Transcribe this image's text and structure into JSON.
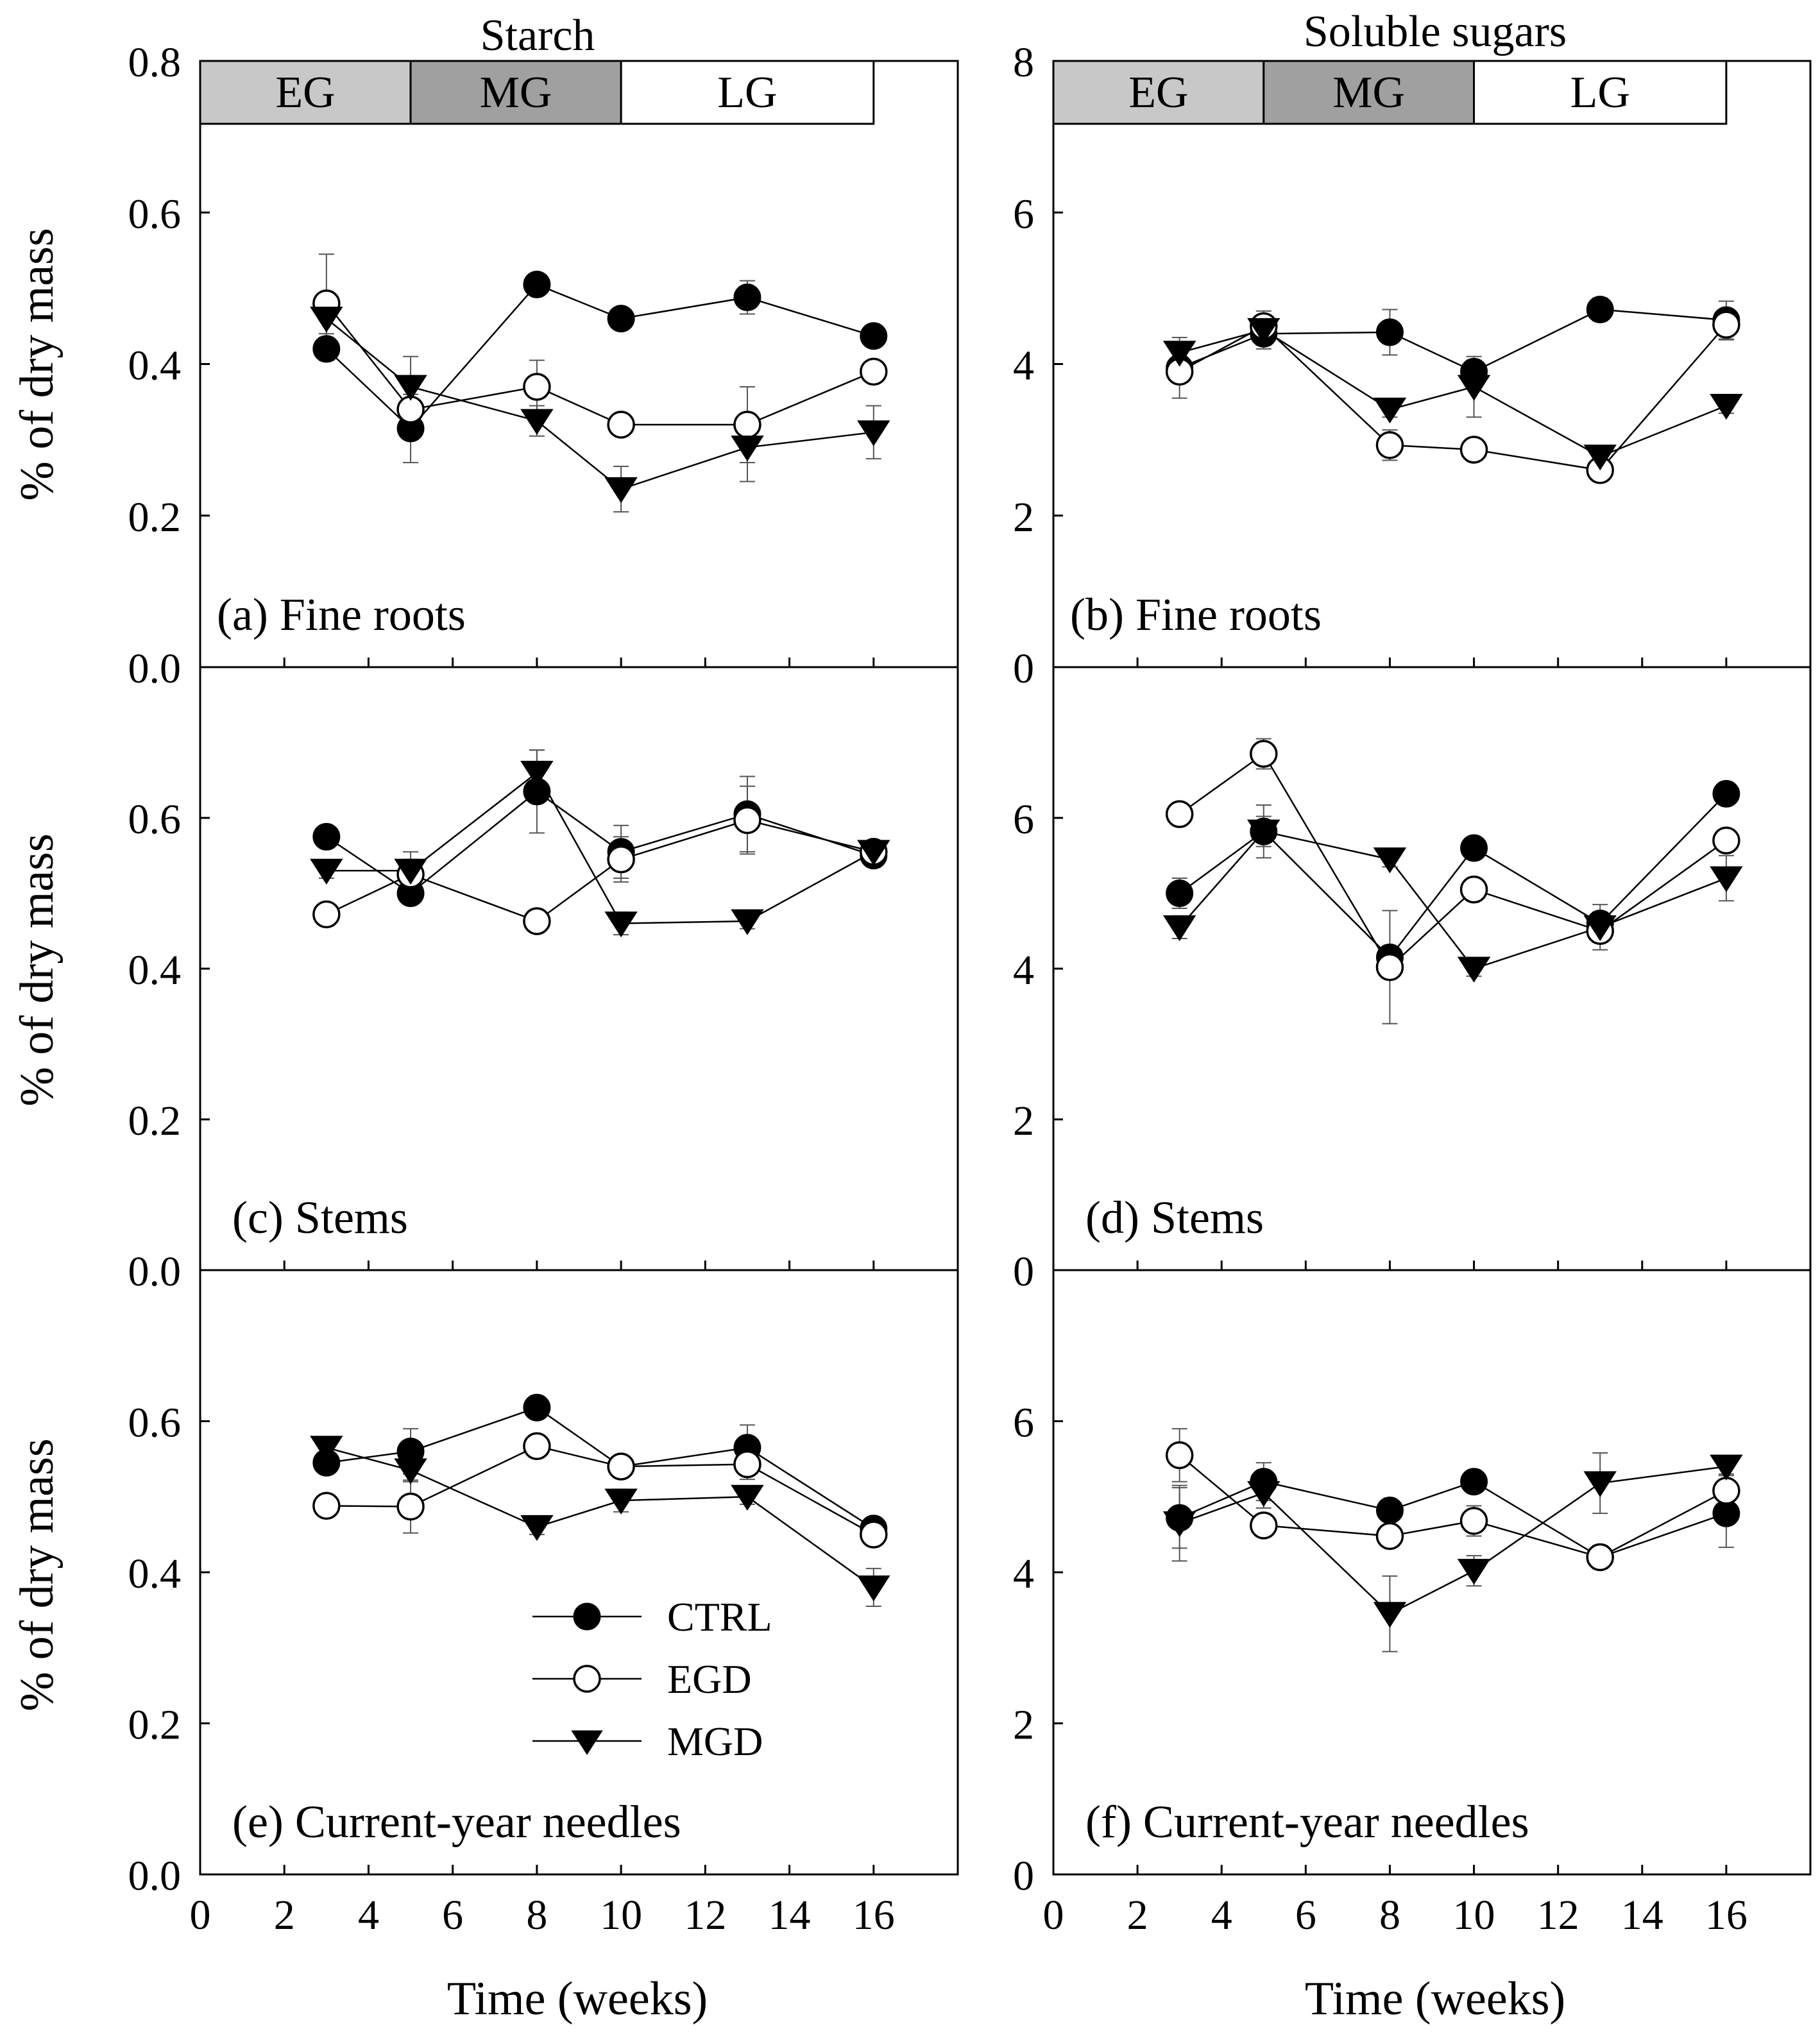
{
  "figure": {
    "x_axis_label": "Time (weeks)",
    "y_axis_label": "% of dry mass",
    "phase_labels": [
      "EG",
      "MG",
      "LG"
    ],
    "phase_colors": [
      "#c8c8c8",
      "#a0a0a0",
      "#ffffff"
    ],
    "legend": [
      "CTRL",
      "EGD",
      "MGD"
    ]
  },
  "columns": [
    {
      "title": "Starch"
    },
    {
      "title": "Soluble sugars"
    }
  ],
  "chart_data": [
    {
      "type": "line",
      "panel": "(a) Fine roots",
      "column": "Starch",
      "xlabel": "",
      "ylabel": "% of dry mass",
      "xlim": [
        0,
        18
      ],
      "ylim": [
        0,
        0.8
      ],
      "yticks": [
        "0.0",
        "0.2",
        "0.4",
        "0.6",
        "0.8"
      ],
      "xticks": [],
      "phases": [
        {
          "label": "EG",
          "x_start": 0,
          "x_end": 5
        },
        {
          "label": "MG",
          "x_start": 5,
          "x_end": 10
        },
        {
          "label": "LG",
          "x_start": 10,
          "x_end": 16
        }
      ],
      "x": [
        3,
        5,
        8,
        10,
        13,
        16
      ],
      "series": [
        {
          "name": "CTRL",
          "values": [
            0.42,
            0.315,
            0.505,
            0.46,
            0.488,
            0.437
          ],
          "errors": [
            0.015,
            0.045,
            0.01,
            0.01,
            0.022,
            0.01
          ]
        },
        {
          "name": "EGD",
          "values": [
            0.48,
            0.34,
            0.37,
            0.32,
            0.32,
            0.39
          ],
          "errors": [
            0.065,
            0.03,
            0.035,
            0.01,
            0.05,
            0.01
          ]
        },
        {
          "name": "MGD",
          "values": [
            0.46,
            0.37,
            0.325,
            0.235,
            0.29,
            0.31
          ],
          "errors": [
            0.02,
            0.04,
            0.02,
            0.03,
            0.045,
            0.035
          ]
        }
      ]
    },
    {
      "type": "line",
      "panel": "(b) Fine roots",
      "column": "Soluble sugars",
      "xlabel": "",
      "ylabel": "",
      "xlim": [
        0,
        18
      ],
      "ylim": [
        0,
        8
      ],
      "yticks": [
        "0",
        "2",
        "4",
        "6",
        "8"
      ],
      "xticks": [],
      "phases": [
        {
          "label": "EG",
          "x_start": 0,
          "x_end": 5
        },
        {
          "label": "MG",
          "x_start": 5,
          "x_end": 10
        },
        {
          "label": "LG",
          "x_start": 10,
          "x_end": 16
        }
      ],
      "x": [
        3,
        5,
        8,
        10,
        13,
        16
      ],
      "series": [
        {
          "name": "CTRL",
          "values": [
            3.95,
            4.4,
            4.42,
            3.9,
            4.72,
            4.58
          ],
          "errors": [
            0.15,
            0.2,
            0.3,
            0.15,
            0.15,
            0.25
          ]
        },
        {
          "name": "EGD",
          "values": [
            3.9,
            4.5,
            2.93,
            2.87,
            2.6,
            4.52
          ],
          "errors": [
            0.35,
            0.2,
            0.2,
            0.1,
            0.15,
            0.2
          ]
        },
        {
          "name": "MGD",
          "values": [
            4.15,
            4.45,
            3.4,
            3.7,
            2.78,
            3.45
          ],
          "errors": [
            0.2,
            0.2,
            0.1,
            0.4,
            0.1,
            0.1
          ]
        }
      ]
    },
    {
      "type": "line",
      "panel": "(c) Stems",
      "column": "Starch",
      "xlabel": "",
      "ylabel": "% of dry mass",
      "xlim": [
        0,
        18
      ],
      "ylim": [
        0,
        0.8
      ],
      "yticks": [
        "0.0",
        "0.2",
        "0.4",
        "0.6"
      ],
      "xticks": [],
      "phases": [],
      "x": [
        3,
        5,
        8,
        10,
        13,
        16
      ],
      "series": [
        {
          "name": "CTRL",
          "values": [
            0.575,
            0.5,
            0.635,
            0.555,
            0.605,
            0.55
          ],
          "errors": [
            0.01,
            0.01,
            0.055,
            0.035,
            0.05,
            0.01
          ]
        },
        {
          "name": "EGD",
          "values": [
            0.472,
            0.525,
            0.463,
            0.545,
            0.597,
            0.555
          ],
          "errors": [
            0.01,
            0.02,
            0.01,
            0.03,
            0.045,
            0.01
          ]
        },
        {
          "name": "MGD",
          "values": [
            0.53,
            0.53,
            0.66,
            0.46,
            0.463,
            0.555
          ],
          "errors": [
            0.01,
            0.025,
            0.03,
            0.015,
            0.01,
            0.01
          ]
        }
      ]
    },
    {
      "type": "line",
      "panel": "(d) Stems",
      "column": "Soluble sugars",
      "xlabel": "",
      "ylabel": "",
      "xlim": [
        0,
        18
      ],
      "ylim": [
        0,
        8
      ],
      "yticks": [
        "0",
        "2",
        "4",
        "6"
      ],
      "xticks": [],
      "phases": [],
      "x": [
        3,
        5,
        8,
        10,
        13,
        16
      ],
      "series": [
        {
          "name": "CTRL",
          "values": [
            5.0,
            5.82,
            4.15,
            5.6,
            4.6,
            6.32
          ],
          "errors": [
            0.2,
            0.35,
            0.1,
            0.1,
            0.25,
            0.1
          ]
        },
        {
          "name": "EGD",
          "values": [
            6.05,
            6.85,
            4.02,
            5.05,
            4.5,
            5.7
          ],
          "errors": [
            0.1,
            0.2,
            0.75,
            0.1,
            0.25,
            0.15
          ]
        },
        {
          "name": "MGD",
          "values": [
            4.55,
            5.82,
            5.45,
            4.0,
            4.55,
            5.2
          ],
          "errors": [
            0.15,
            0.2,
            0.1,
            0.1,
            0.2,
            0.3
          ]
        }
      ]
    },
    {
      "type": "line",
      "panel": "(e) Current-year needles",
      "column": "Starch",
      "xlabel": "Time (weeks)",
      "ylabel": "% of dry mass",
      "xlim": [
        0,
        18
      ],
      "ylim": [
        0,
        0.8
      ],
      "yticks": [
        "0.0",
        "0.2",
        "0.4",
        "0.6"
      ],
      "xticks": [
        "0",
        "2",
        "4",
        "6",
        "8",
        "10",
        "12",
        "14",
        "16"
      ],
      "phases": [],
      "x": [
        3,
        5,
        8,
        10,
        13,
        16
      ],
      "series": [
        {
          "name": "CTRL",
          "values": [
            0.545,
            0.56,
            0.618,
            0.54,
            0.565,
            0.458
          ],
          "errors": [
            0.01,
            0.03,
            0.01,
            0.01,
            0.03,
            0.01
          ]
        },
        {
          "name": "EGD",
          "values": [
            0.488,
            0.487,
            0.567,
            0.54,
            0.543,
            0.45
          ],
          "errors": [
            0.01,
            0.035,
            0.015,
            0.01,
            0.02,
            0.01
          ]
        },
        {
          "name": "MGD",
          "values": [
            0.565,
            0.535,
            0.46,
            0.495,
            0.5,
            0.38
          ],
          "errors": [
            0.01,
            0.015,
            0.01,
            0.015,
            0.01,
            0.025
          ]
        }
      ]
    },
    {
      "type": "line",
      "panel": "(f) Current-year needles",
      "column": "Soluble sugars",
      "xlabel": "Time (weeks)",
      "ylabel": "",
      "xlim": [
        0,
        18
      ],
      "ylim": [
        0,
        8
      ],
      "yticks": [
        "0",
        "2",
        "4",
        "6"
      ],
      "xticks": [
        "0",
        "2",
        "4",
        "6",
        "8",
        "10",
        "12",
        "14",
        "16"
      ],
      "phases": [],
      "x": [
        3,
        5,
        8,
        10,
        13,
        16
      ],
      "series": [
        {
          "name": "CTRL",
          "values": [
            4.72,
            5.2,
            4.82,
            5.2,
            4.2,
            4.78
          ],
          "errors": [
            0.4,
            0.25,
            0.1,
            0.1,
            0.15,
            0.45
          ]
        },
        {
          "name": "EGD",
          "values": [
            5.55,
            4.62,
            4.48,
            4.68,
            4.2,
            5.08
          ],
          "errors": [
            0.35,
            0.1,
            0.1,
            0.2,
            0.15,
            0.2
          ]
        },
        {
          "name": "MGD",
          "values": [
            4.65,
            5.05,
            3.45,
            4.02,
            5.18,
            5.4
          ],
          "errors": [
            0.5,
            0.2,
            0.5,
            0.2,
            0.4,
            0.1
          ]
        }
      ]
    }
  ]
}
